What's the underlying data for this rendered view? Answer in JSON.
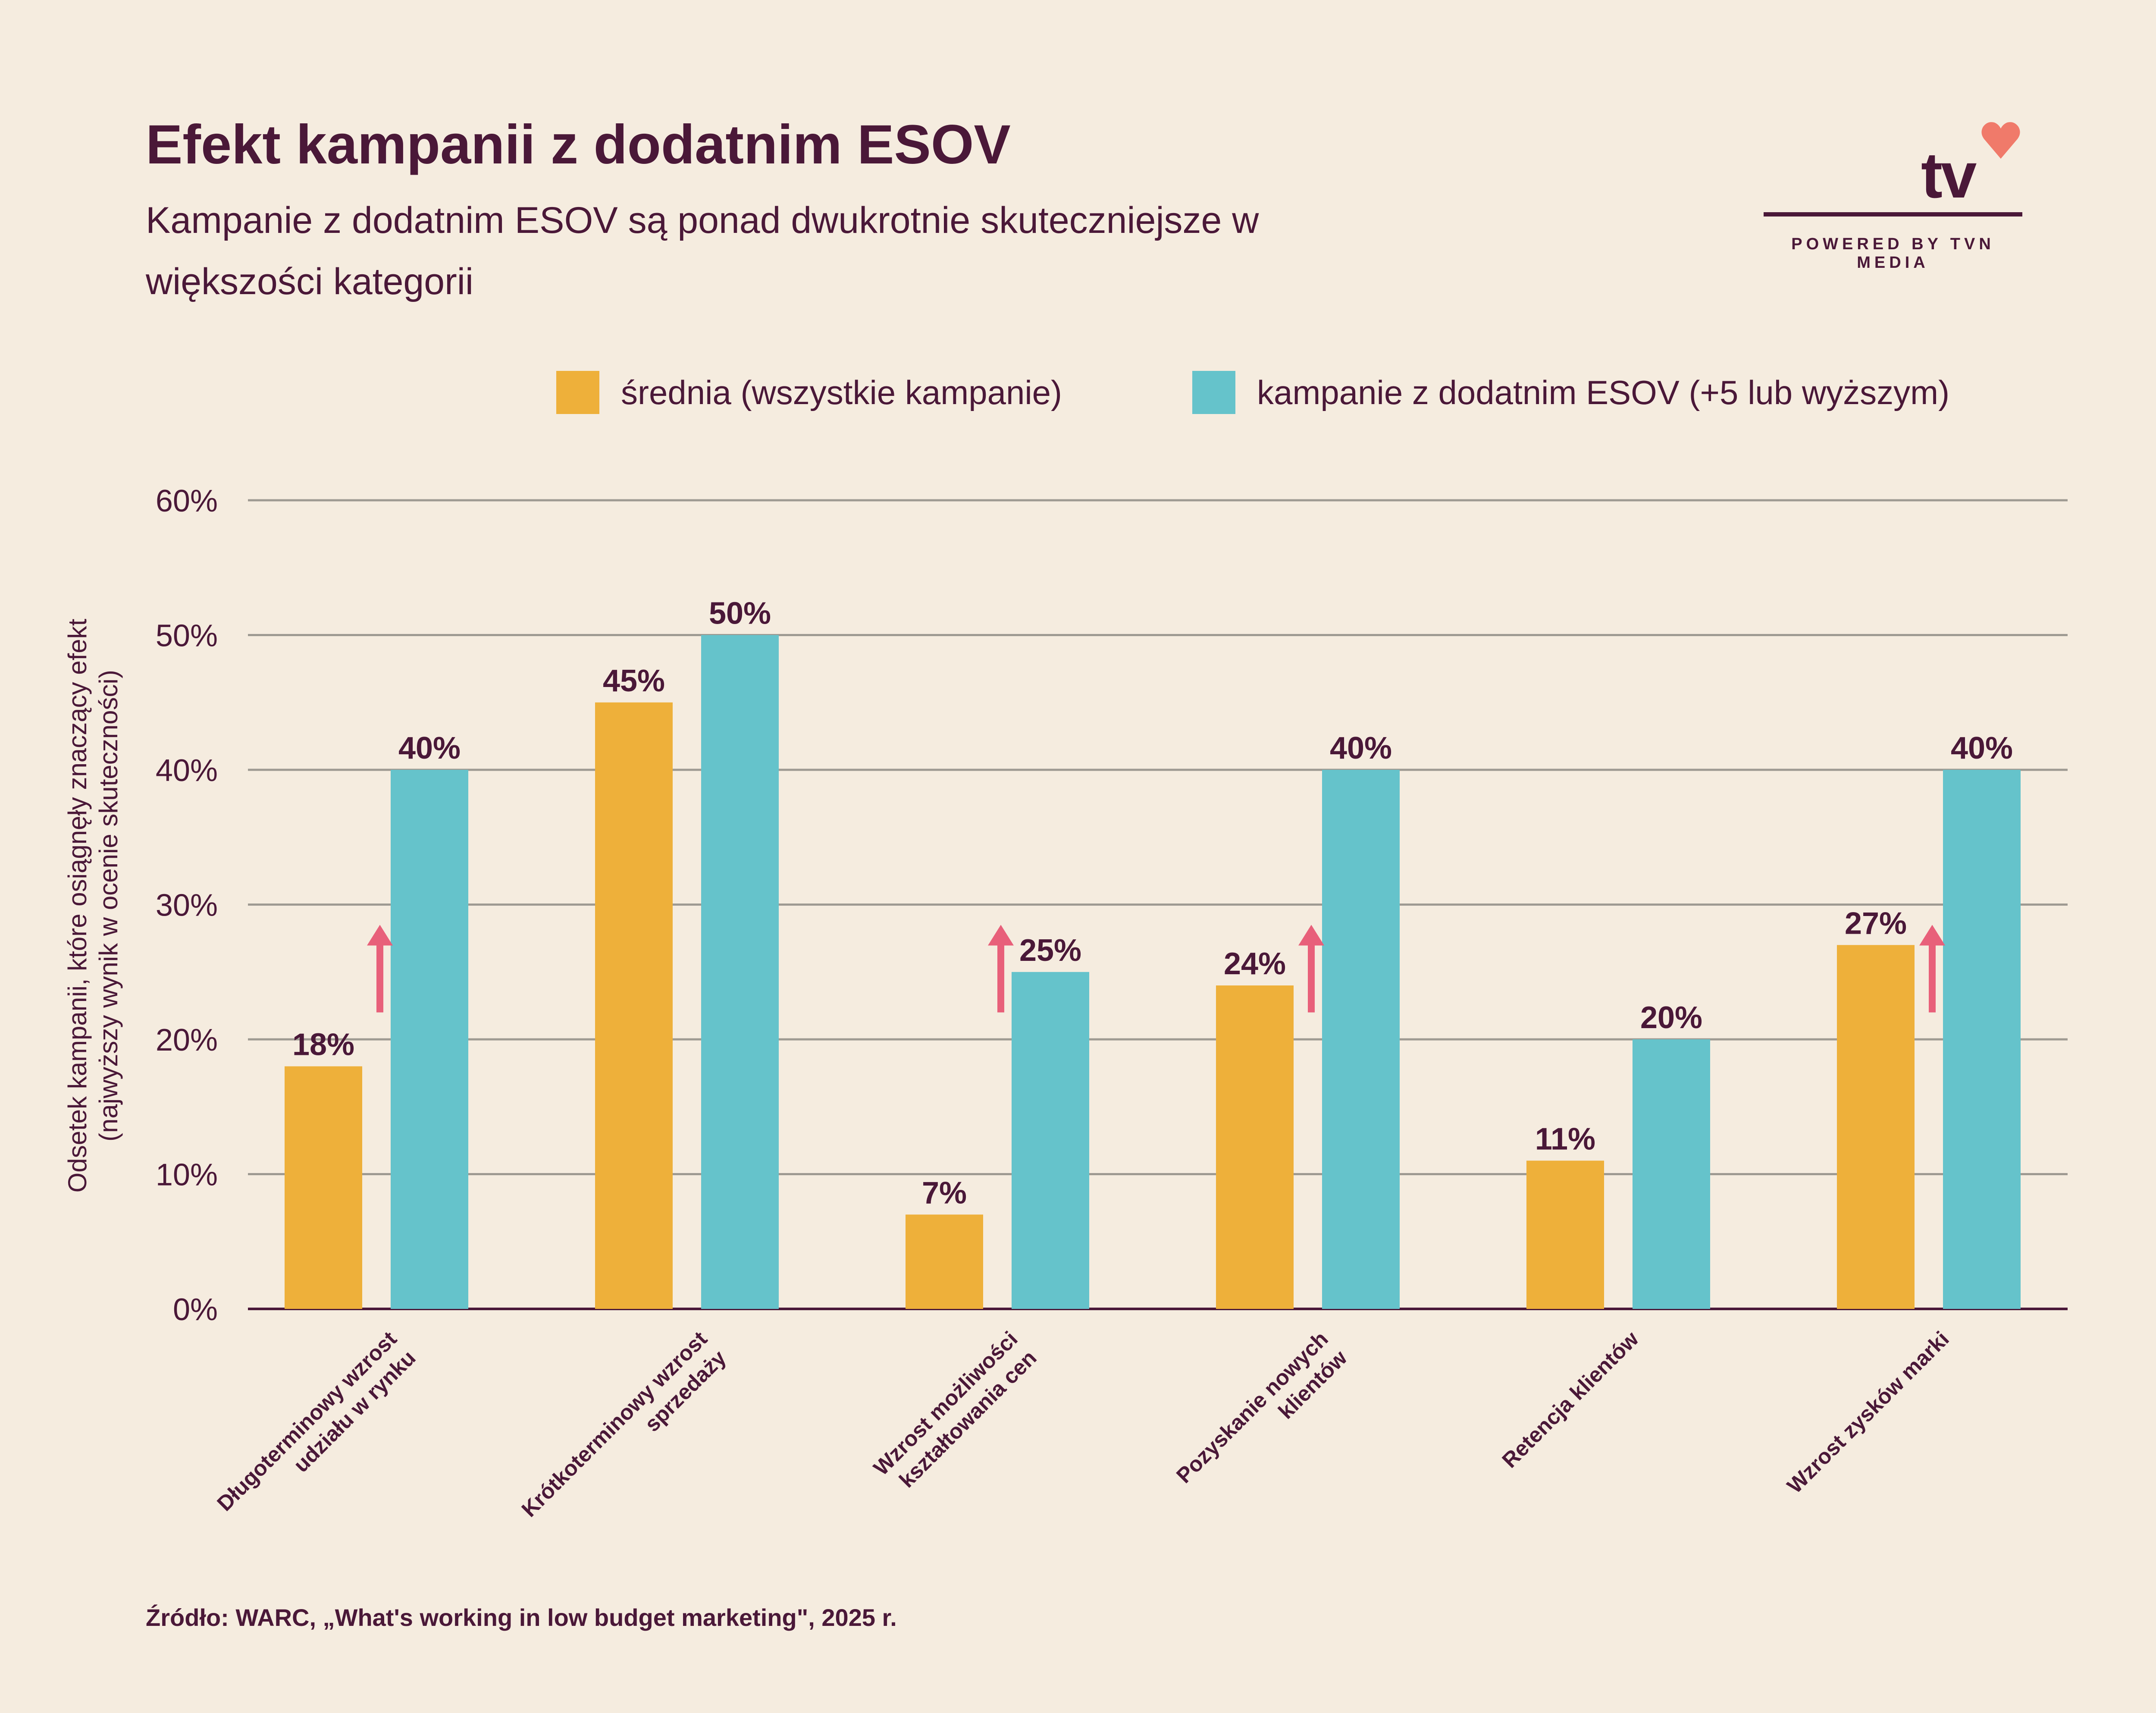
{
  "header": {
    "title": "Efekt kampanii z dodatnim ESOV",
    "subtitle": "Kampanie z dodatnim ESOV są ponad dwukrotnie skuteczniejsze w większości kategorii"
  },
  "logo": {
    "text": "tv",
    "tagline": "POWERED BY TVN MEDIA",
    "icon": "heart-icon",
    "heart_color": "#F07A6A"
  },
  "legend": [
    {
      "label": "średnia (wszystkie kampanie)",
      "color": "#EEB03A"
    },
    {
      "label": "kampanie z dodatnim ESOV (+5 lub wyższym)",
      "color": "#65C3CB"
    }
  ],
  "chart_data": {
    "type": "bar",
    "title": "Efekt kampanii z dodatnim ESOV",
    "ylabel": "Odsetek kampanii, które osiągnęły znaczący efekt (najwyższy wynik w ocenie skuteczności)",
    "ylabel_lines": [
      "Odsetek kampanii, które osiągnęły znaczący efekt",
      "(najwyższy wynik w ocenie skuteczności)"
    ],
    "ylim": [
      0,
      60
    ],
    "yticks": [
      0,
      10,
      20,
      30,
      40,
      50,
      60
    ],
    "ytick_labels": [
      "0%",
      "10%",
      "20%",
      "30%",
      "40%",
      "50%",
      "60%"
    ],
    "grid": true,
    "legend_position": "top-right",
    "categories": [
      [
        "Długoterminowy wzrost",
        "udziału w rynku"
      ],
      [
        "Krótkoterminowy wzrost",
        "sprzedaży"
      ],
      [
        "Wzrost możliwości",
        "kształtowania cen"
      ],
      [
        "Pozyskanie nowych",
        "klientów"
      ],
      [
        "Retencja klientów"
      ],
      [
        "Wzrost zysków marki"
      ]
    ],
    "series": [
      {
        "name": "średnia (wszystkie kampanie)",
        "color": "#EEB03A",
        "values": [
          18,
          45,
          7,
          24,
          11,
          27
        ],
        "labels": [
          "18%",
          "45%",
          "7%",
          "24%",
          "11%",
          "27%"
        ]
      },
      {
        "name": "kampanie z dodatnim ESOV (+5 lub wyższym)",
        "color": "#65C3CB",
        "values": [
          40,
          50,
          25,
          40,
          20,
          40
        ],
        "labels": [
          "40%",
          "50%",
          "25%",
          "40%",
          "20%",
          "40%"
        ]
      }
    ],
    "uplift_arrows": [
      true,
      false,
      true,
      true,
      false,
      true
    ],
    "arrow_color": "#E8607A",
    "grid_color": "#9E9A92",
    "axis_color": "#4A1838"
  },
  "footer": {
    "source": "Źródło: WARC, „What's working in low budget marketing\", 2025 r."
  }
}
